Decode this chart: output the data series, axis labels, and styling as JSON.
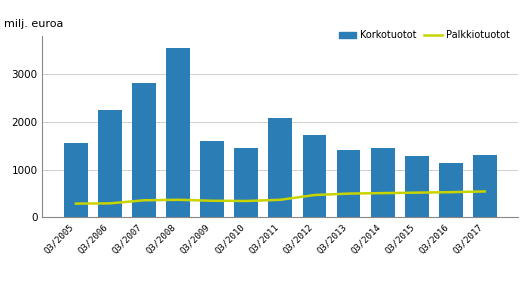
{
  "categories": [
    "Q3/2005",
    "Q3/2006",
    "Q3/2007",
    "Q3/2008",
    "Q3/2009",
    "Q3/2010",
    "Q3/2011",
    "Q3/2012",
    "Q3/2013",
    "Q3/2014",
    "Q3/2015",
    "Q3/2016",
    "Q3/2017"
  ],
  "korkotuotot": [
    1570,
    2260,
    2820,
    3560,
    1600,
    1450,
    2080,
    1730,
    1420,
    1460,
    1290,
    1150,
    1300
  ],
  "palkkiotuotot": [
    290,
    295,
    360,
    370,
    350,
    345,
    370,
    470,
    500,
    510,
    520,
    530,
    545
  ],
  "bar_color": "#2a7db5",
  "line_color": "#c8d400",
  "top_label": "milj. euroa",
  "ylim": [
    0,
    3800
  ],
  "yticks": [
    0,
    1000,
    2000,
    3000
  ],
  "legend_bar_label": "Korkotuotot",
  "legend_line_label": "Palkkiotuotot",
  "background_color": "#ffffff",
  "grid_color": "#c8c8c8"
}
